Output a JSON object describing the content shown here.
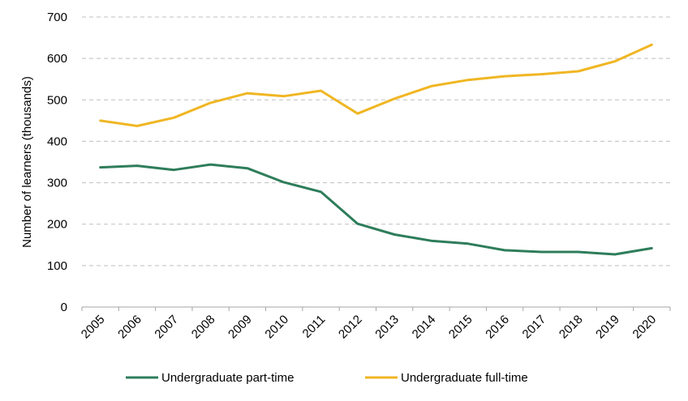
{
  "chart_data": {
    "type": "line",
    "ylabel": "Number of learners (thousands)",
    "xlabel": "",
    "ylim": [
      0,
      700
    ],
    "y_ticks": [
      0,
      100,
      200,
      300,
      400,
      500,
      600,
      700
    ],
    "grid": "horizontal dashed",
    "legend_placement": "bottom",
    "categories": [
      "2005",
      "2006",
      "2007",
      "2008",
      "2009",
      "2010",
      "2011",
      "2012",
      "2013",
      "2014",
      "2015",
      "2016",
      "2017",
      "2018",
      "2019",
      "2020"
    ],
    "series": [
      {
        "name": "Undergraduate part-time",
        "color": "#2e7d5b",
        "values": [
          337,
          341,
          331,
          344,
          335,
          301,
          278,
          201,
          175,
          160,
          153,
          137,
          133,
          133,
          127,
          142
        ]
      },
      {
        "name": "Undergraduate full-time",
        "color": "#f0b623",
        "values": [
          450,
          437,
          457,
          493,
          516,
          509,
          522,
          467,
          503,
          533,
          548,
          557,
          562,
          569,
          593,
          633
        ]
      }
    ]
  }
}
